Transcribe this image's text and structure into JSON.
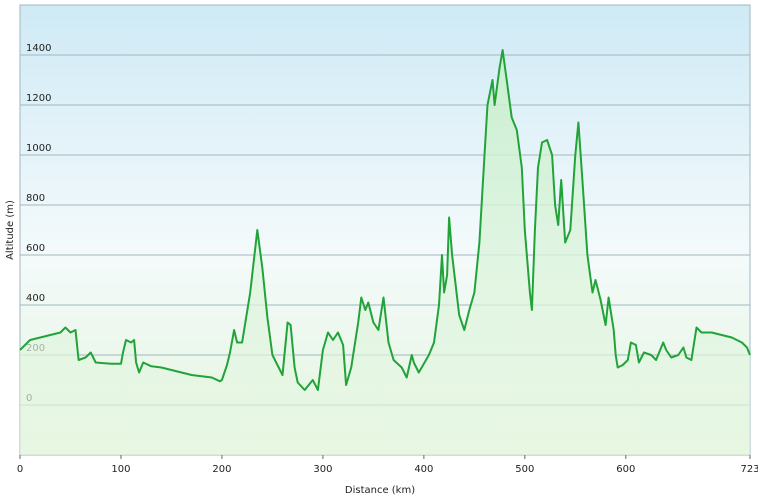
{
  "chart_data": {
    "type": "line",
    "xlabel": "Distance  (km)",
    "ylabel": "Altitude (m)",
    "x": [
      0,
      10,
      20,
      30,
      40,
      45,
      50,
      55,
      58,
      65,
      70,
      75,
      90,
      100,
      102,
      105,
      110,
      113,
      115,
      118,
      122,
      130,
      140,
      150,
      160,
      170,
      180,
      190,
      198,
      200,
      205,
      208,
      212,
      215,
      220,
      228,
      235,
      240,
      245,
      250,
      260,
      265,
      268,
      272,
      275,
      282,
      290,
      295,
      300,
      305,
      310,
      315,
      320,
      323,
      328,
      335,
      338,
      342,
      345,
      350,
      355,
      360,
      365,
      370,
      378,
      383,
      388,
      390,
      395,
      405,
      410,
      415,
      418,
      420,
      423,
      425,
      428,
      435,
      440,
      445,
      450,
      455,
      460,
      463,
      468,
      470,
      475,
      478,
      482,
      487,
      492,
      497,
      500,
      505,
      507,
      510,
      513,
      517,
      522,
      527,
      530,
      533,
      536,
      540,
      545,
      550,
      553,
      557,
      562,
      567,
      570,
      575,
      580,
      583,
      588,
      590,
      592,
      597,
      602,
      605,
      610,
      613,
      618,
      625,
      630,
      637,
      640,
      645,
      652,
      657,
      660,
      665,
      670,
      675,
      685,
      695,
      705,
      715,
      720,
      723
    ],
    "series": [
      {
        "name": "Altitude",
        "color": "#22a33a",
        "values": [
          220,
          260,
          270,
          280,
          290,
          310,
          290,
          300,
          180,
          190,
          210,
          170,
          165,
          165,
          210,
          260,
          250,
          260,
          170,
          130,
          170,
          155,
          150,
          140,
          130,
          120,
          115,
          110,
          95,
          100,
          160,
          210,
          300,
          250,
          250,
          450,
          700,
          550,
          350,
          200,
          120,
          330,
          320,
          150,
          90,
          60,
          100,
          60,
          220,
          290,
          260,
          290,
          240,
          80,
          150,
          330,
          430,
          380,
          410,
          330,
          300,
          430,
          250,
          180,
          150,
          110,
          200,
          170,
          130,
          200,
          250,
          400,
          600,
          450,
          520,
          750,
          600,
          360,
          300,
          380,
          450,
          650,
          1000,
          1200,
          1300,
          1200,
          1350,
          1420,
          1300,
          1150,
          1100,
          950,
          700,
          450,
          380,
          700,
          950,
          1050,
          1060,
          1000,
          800,
          720,
          900,
          650,
          700,
          1000,
          1130,
          900,
          600,
          450,
          500,
          420,
          320,
          430,
          300,
          200,
          150,
          160,
          180,
          250,
          240,
          170,
          210,
          200,
          180,
          250,
          220,
          190,
          200,
          230,
          190,
          180,
          310,
          290,
          290,
          280,
          270,
          250,
          230,
          200
        ]
      }
    ],
    "xlim": [
      0,
      723
    ],
    "xticks": [
      0,
      100,
      200,
      300,
      400,
      500,
      600,
      723
    ],
    "ylim": [
      -200,
      1600
    ],
    "yticks": [
      0,
      200,
      400,
      600,
      800,
      1000,
      1200,
      1400
    ],
    "grid": true
  }
}
